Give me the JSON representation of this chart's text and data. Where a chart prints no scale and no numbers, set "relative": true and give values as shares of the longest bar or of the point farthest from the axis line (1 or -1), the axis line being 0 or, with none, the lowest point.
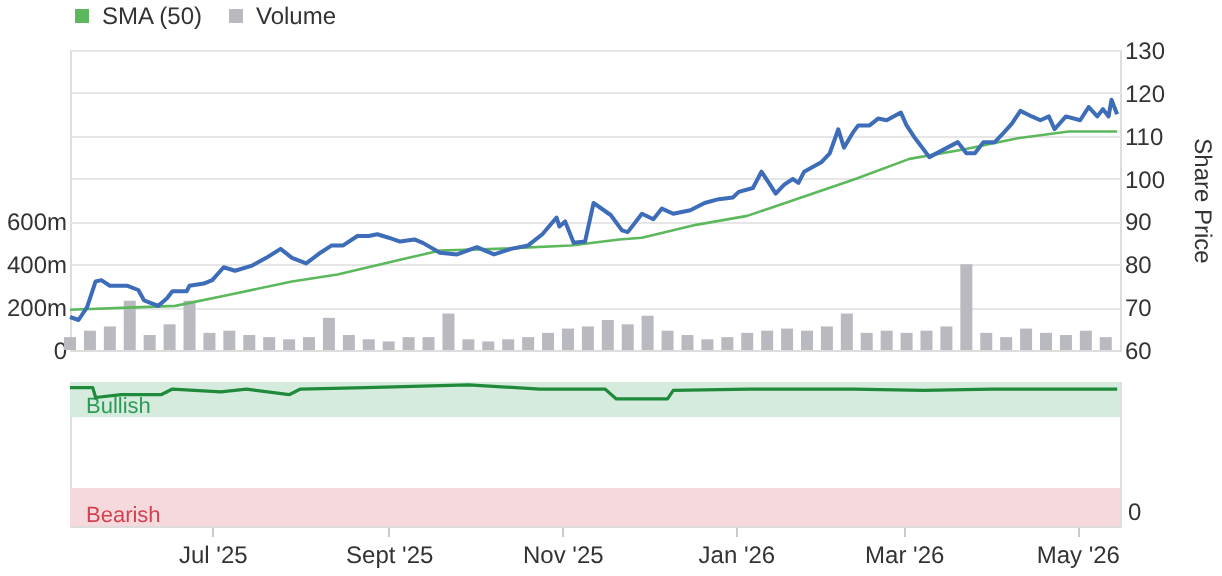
{
  "chart_data": [
    {
      "type": "line",
      "legend": "top left",
      "grid": "y",
      "tick_labels": "y",
      "xlim": [
        "2025-05-12",
        "2026-05-16"
      ],
      "ylim": [
        0,
        1400
      ],
      "yticks": [
        0,
        {
          "value": 200,
          "label": "200m"
        },
        {
          "value": 400,
          "label": "400m"
        },
        {
          "value": 600,
          "label": "600m"
        }
      ],
      "y2lim": [
        60,
        130
      ],
      "y2ticks": [
        60,
        70,
        80,
        90,
        100,
        110,
        120,
        130
      ],
      "y2label": "Share Price",
      "series": [
        {
          "name": "SMA (50)",
          "axis": "y2",
          "color": "#5cb85c",
          "x": [
            "2025-05-12",
            "2025-06-06",
            "2025-06-18",
            "2025-07-07",
            "2025-07-29",
            "2025-08-14",
            "2025-09-08",
            "2025-09-19",
            "2025-10-09",
            "2025-11-04",
            "2025-11-21",
            "2025-11-29",
            "2025-12-18",
            "2026-01-05",
            "2026-01-24",
            "2026-02-12",
            "2026-03-03",
            "2026-03-22",
            "2026-04-10",
            "2026-04-28",
            "2026-05-15"
          ],
          "values": [
            69.4,
            70,
            70.3,
            72.9,
            76,
            77.6,
            81.5,
            83.2,
            83.6,
            84.4,
            85.8,
            86.2,
            89.2,
            91.3,
            95.6,
            99.9,
            104.6,
            106.8,
            109.4,
            111,
            111
          ]
        },
        {
          "name": "Volume",
          "type": "bar",
          "color": "#b9b9c0",
          "x": [
            "2025-05-12",
            "2025-05-19",
            "2025-05-26",
            "2025-06-02",
            "2025-06-09",
            "2025-06-16",
            "2025-06-23",
            "2025-06-30",
            "2025-07-07",
            "2025-07-14",
            "2025-07-21",
            "2025-07-28",
            "2025-08-04",
            "2025-08-11",
            "2025-08-18",
            "2025-08-25",
            "2025-09-01",
            "2025-09-08",
            "2025-09-15",
            "2025-09-22",
            "2025-09-29",
            "2025-10-06",
            "2025-10-13",
            "2025-10-20",
            "2025-10-27",
            "2025-11-03",
            "2025-11-10",
            "2025-11-17",
            "2025-11-24",
            "2025-12-01",
            "2025-12-08",
            "2025-12-15",
            "2025-12-22",
            "2025-12-29",
            "2026-01-05",
            "2026-01-12",
            "2026-01-19",
            "2026-01-26",
            "2026-02-02",
            "2026-02-09",
            "2026-02-16",
            "2026-02-23",
            "2026-03-02",
            "2026-03-09",
            "2026-03-16",
            "2026-03-23",
            "2026-03-30",
            "2026-04-06",
            "2026-04-13",
            "2026-04-20",
            "2026-04-27",
            "2026-05-04",
            "2026-05-11"
          ],
          "values": [
            60,
            90,
            110,
            230,
            70,
            120,
            230,
            80,
            90,
            70,
            60,
            50,
            60,
            150,
            70,
            50,
            40,
            60,
            60,
            170,
            50,
            40,
            50,
            60,
            80,
            100,
            110,
            140,
            120,
            160,
            90,
            70,
            50,
            60,
            80,
            90,
            100,
            90,
            110,
            170,
            80,
            90,
            80,
            90,
            110,
            400,
            80,
            60,
            100,
            80,
            70,
            90,
            60
          ]
        },
        {
          "axis": "y2",
          "color": "#3d6cb9",
          "x": [
            "2025-05-12",
            "2025-05-15",
            "2025-05-18",
            "2025-05-21",
            "2025-05-23",
            "2025-05-26",
            "2025-06-01",
            "2025-06-05",
            "2025-06-07",
            "2025-06-12",
            "2025-06-15",
            "2025-06-17",
            "2025-06-22",
            "2025-06-23",
            "2025-06-28",
            "2025-07-01",
            "2025-07-05",
            "2025-07-09",
            "2025-07-15",
            "2025-07-20",
            "2025-07-25",
            "2025-07-29",
            "2025-08-03",
            "2025-08-08",
            "2025-08-12",
            "2025-08-16",
            "2025-08-21",
            "2025-08-25",
            "2025-08-28",
            "2025-09-01",
            "2025-09-05",
            "2025-09-10",
            "2025-09-13",
            "2025-09-19",
            "2025-09-25",
            "2025-10-02",
            "2025-10-08",
            "2025-10-14",
            "2025-10-20",
            "2025-10-25",
            "2025-10-30",
            "2025-10-31",
            "2025-11-02",
            "2025-11-05",
            "2025-11-09",
            "2025-11-12",
            "2025-11-18",
            "2025-11-22",
            "2025-11-24",
            "2025-11-29",
            "2025-12-03",
            "2025-12-06",
            "2025-12-10",
            "2025-12-16",
            "2025-12-21",
            "2025-12-26",
            "2025-12-31",
            "2026-01-02",
            "2026-01-07",
            "2026-01-10",
            "2026-01-13",
            "2026-01-15",
            "2026-01-18",
            "2026-01-21",
            "2026-01-23",
            "2026-01-25",
            "2026-01-31",
            "2026-02-03",
            "2026-02-06",
            "2026-02-08",
            "2026-02-11",
            "2026-02-13",
            "2026-02-17",
            "2026-02-20",
            "2026-02-23",
            "2026-02-28",
            "2026-03-02",
            "2026-03-05",
            "2026-03-10",
            "2026-03-14",
            "2026-03-20",
            "2026-03-23",
            "2026-03-26",
            "2026-03-29",
            "2026-04-02",
            "2026-04-05",
            "2026-04-08",
            "2026-04-11",
            "2026-04-15",
            "2026-04-18",
            "2026-04-21",
            "2026-04-23",
            "2026-04-27",
            "2026-05-02",
            "2026-05-05",
            "2026-05-08",
            "2026-05-10",
            "2026-05-12",
            "2026-05-13",
            "2026-05-15"
          ],
          "values": [
            67.7,
            67,
            70,
            76,
            76.3,
            75,
            75,
            74,
            71.6,
            70.3,
            72,
            73.7,
            73.7,
            75,
            75.5,
            76.3,
            79.3,
            78.5,
            79.7,
            81.5,
            83.6,
            81.5,
            80.2,
            82.7,
            84.4,
            84.4,
            86.6,
            86.6,
            87,
            86.2,
            85.3,
            85.8,
            85,
            82.7,
            82.3,
            84,
            82.3,
            83.6,
            84.4,
            87,
            90.9,
            88.8,
            90,
            85,
            85.3,
            94.3,
            91.5,
            87.9,
            87.5,
            91.8,
            90.5,
            93,
            91.8,
            92.6,
            94.3,
            95.2,
            95.6,
            96.9,
            97.8,
            101.6,
            98.6,
            96.5,
            98.6,
            99.9,
            99,
            101.6,
            103.8,
            105.9,
            111.5,
            107.2,
            110.6,
            112.4,
            112.4,
            114,
            113.6,
            115.4,
            112.4,
            109.4,
            105,
            106.4,
            108.5,
            105.9,
            105.9,
            108.5,
            108.5,
            110.6,
            112.8,
            115.8,
            114.5,
            113.6,
            114.5,
            111.5,
            114.5,
            113.6,
            116.7,
            114.5,
            116.2,
            114.5,
            118.4,
            115
          ]
        }
      ]
    },
    {
      "type": "line",
      "relative": true,
      "xlim": [
        "2025-05-12",
        "2026-05-16"
      ],
      "xticks": [
        {
          "value": "2025-07-01",
          "label": "Jul '25"
        },
        {
          "value": "2025-09-01",
          "label": "Sept '25"
        },
        {
          "value": "2025-11-01",
          "label": "Nov '25"
        },
        {
          "value": "2026-01-01",
          "label": "Jan '26"
        },
        {
          "value": "2026-03-01",
          "label": "Mar '26"
        },
        {
          "value": "2026-05-01",
          "label": "May '26"
        }
      ],
      "annotations": [
        "0"
      ],
      "bands": [
        {
          "axis": "y",
          "from": 0.77,
          "to": 1.02,
          "label": "Bullish",
          "color": "#d5ebdd"
        },
        {
          "axis": "y",
          "from": 0,
          "to": 0.27,
          "label": "Bearish",
          "color": "#f6d9dc"
        }
      ],
      "series": [
        {
          "color": "#1e8a3a",
          "x": [
            "2025-05-12",
            "2025-05-20",
            "2025-05-21",
            "2025-05-30",
            "2025-06-13",
            "2025-06-17",
            "2025-07-04",
            "2025-07-13",
            "2025-07-28",
            "2025-08-01",
            "2025-08-24",
            "2025-09-29",
            "2025-10-24",
            "2025-11-16",
            "2025-11-20",
            "2025-12-08",
            "2025-12-10",
            "2026-01-06",
            "2026-02-11",
            "2026-03-08",
            "2026-04-01",
            "2026-05-15"
          ],
          "values": [
            0.98,
            0.98,
            0.91,
            0.93,
            0.93,
            0.97,
            0.95,
            0.97,
            0.93,
            0.97,
            0.98,
            1,
            0.97,
            0.97,
            0.9,
            0.9,
            0.96,
            0.97,
            0.97,
            0.96,
            0.97,
            0.97
          ]
        }
      ]
    }
  ]
}
